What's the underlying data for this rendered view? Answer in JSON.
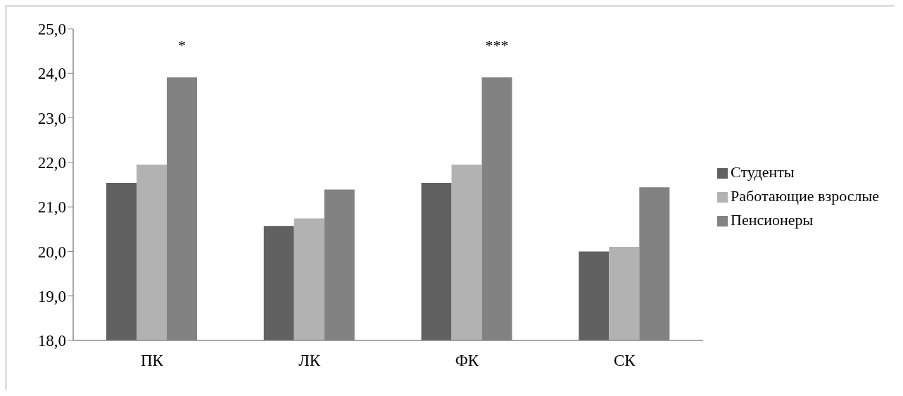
{
  "chart_data": {
    "type": "bar",
    "categories": [
      "ПК",
      "ЛК",
      "ФК",
      "СК"
    ],
    "series": [
      {
        "name": "Студенты",
        "color": "#616161",
        "values": [
          21.54,
          20.57,
          21.54,
          20.0
        ]
      },
      {
        "name": "Работающие взрослые",
        "color": "#b2b2b2",
        "values": [
          21.95,
          20.74,
          21.95,
          20.1
        ]
      },
      {
        "name": "Пенсионеры",
        "color": "#828282",
        "values": [
          23.91,
          21.39,
          23.91,
          21.44
        ]
      }
    ],
    "ylim": [
      18,
      25
    ],
    "yticks": [
      {
        "value": 18,
        "label": "18,0"
      },
      {
        "value": 19,
        "label": "19,0"
      },
      {
        "value": 20,
        "label": "20,0"
      },
      {
        "value": 21,
        "label": "21,0"
      },
      {
        "value": 22,
        "label": "22,0"
      },
      {
        "value": 23,
        "label": "23,0"
      },
      {
        "value": 24,
        "label": "24,0"
      },
      {
        "value": 25,
        "label": "25,0"
      }
    ],
    "annotations": [
      "*",
      "***"
    ],
    "grid": false,
    "legend": "right"
  }
}
